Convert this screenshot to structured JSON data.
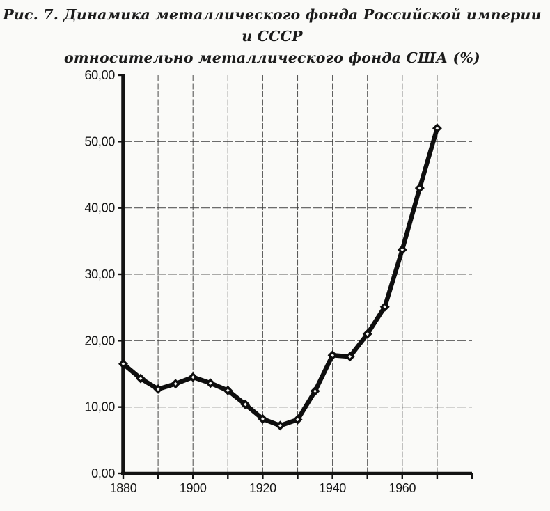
{
  "figure": {
    "title_line1": "Рис. 7. Динамика металлического фонда Российской империи и СССР",
    "title_line2": "относительно металлического фонда США (%)"
  },
  "chart_data": {
    "type": "line",
    "title": "Рис. 7. Динамика металлического фонда Российской империи и СССР относительно металлического фонда США (%)",
    "xlabel": "",
    "ylabel": "",
    "x": [
      1880,
      1885,
      1890,
      1895,
      1900,
      1905,
      1910,
      1915,
      1920,
      1925,
      1930,
      1935,
      1940,
      1945,
      1950,
      1955,
      1960,
      1965,
      1970
    ],
    "values": [
      16.5,
      14.3,
      12.7,
      13.5,
      14.5,
      13.6,
      12.5,
      10.4,
      8.2,
      7.2,
      8.1,
      12.4,
      17.8,
      17.6,
      21.0,
      25.1,
      33.7,
      43.0,
      52.0
    ],
    "xlim": [
      1880,
      1980
    ],
    "ylim": [
      0,
      60
    ],
    "x_ticks": [
      1880,
      1890,
      1900,
      1910,
      1920,
      1930,
      1940,
      1950,
      1960,
      1970,
      1980
    ],
    "x_tick_labels": [
      "1880",
      "",
      "1900",
      "",
      "1920",
      "",
      "1940",
      "",
      "1960",
      "",
      ""
    ],
    "y_ticks": [
      0,
      10,
      20,
      30,
      40,
      50,
      60
    ],
    "y_tick_labels": [
      "0,00",
      "10,00",
      "20,00",
      "30,00",
      "40,00",
      "50,00",
      "60,00"
    ],
    "grid": true,
    "legend_position": "none",
    "marker": "diamond",
    "colors": {
      "line": "#0e0e0e",
      "marker_center": "#f6f6f4",
      "grid": "#3d3d3d",
      "axis": "#131313",
      "text": "#161616",
      "background": "#fafaf8"
    }
  }
}
